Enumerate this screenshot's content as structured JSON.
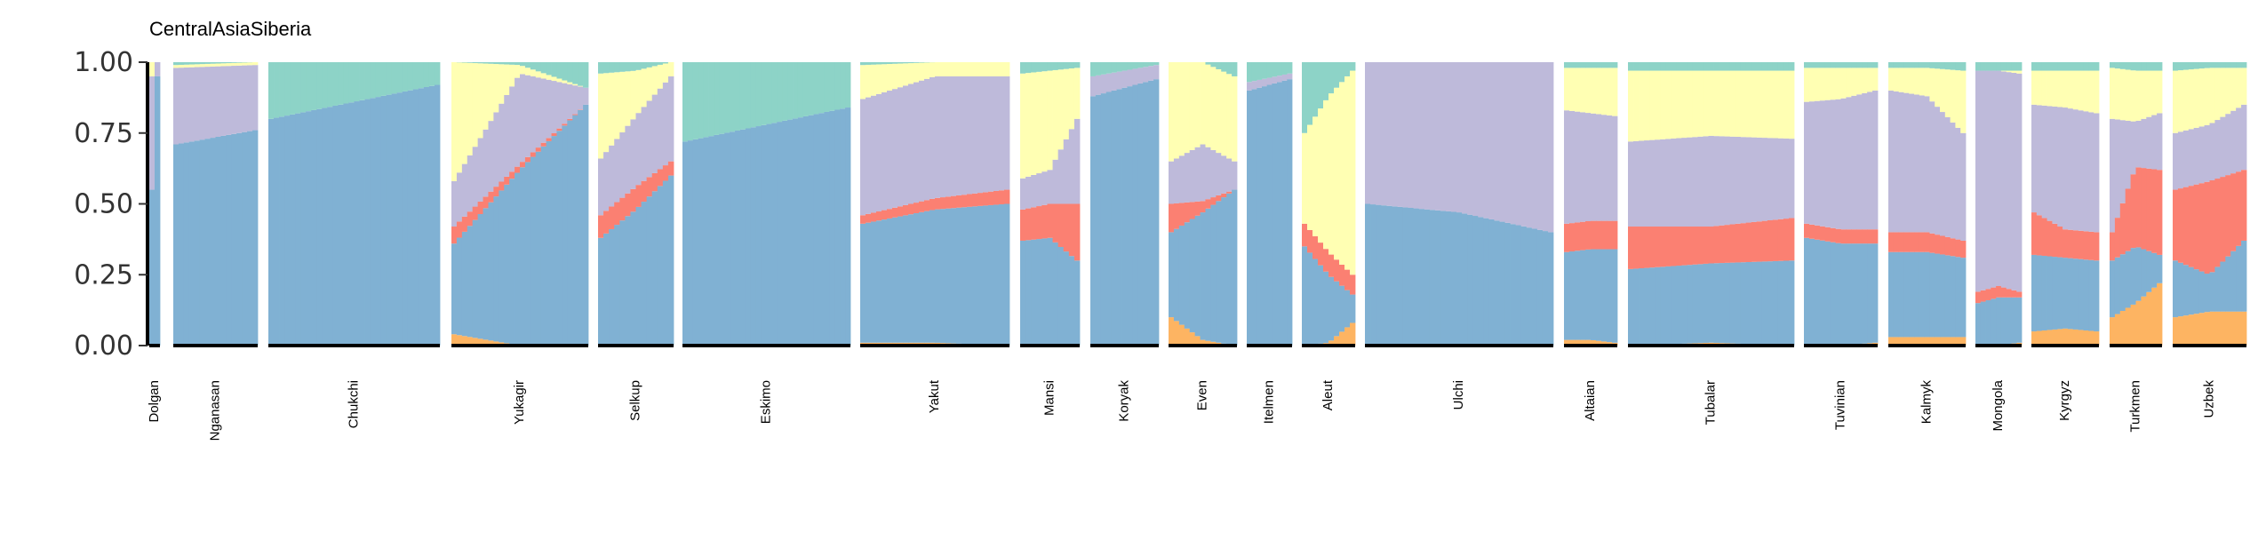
{
  "chart_data": {
    "type": "bar",
    "stacked": true,
    "title": "CentralAsiaSiberia",
    "xlabel": "",
    "ylabel": "",
    "ylim": [
      0,
      1
    ],
    "yticks": [
      "0.00",
      "0.25",
      "0.50",
      "0.75",
      "1.00"
    ],
    "grid": false,
    "legend": "none",
    "component_colors": [
      "#FDB462",
      "#80B1D3",
      "#FB8072",
      "#BEBADA",
      "#FFFFB3",
      "#8DD3C7"
    ],
    "populations": [
      {
        "name": "Dolgan",
        "components": [
          [
            0,
            0.55,
            0,
            0.4,
            0.05,
            0
          ],
          [
            0,
            0.95,
            0,
            0.05,
            0,
            0
          ]
        ]
      },
      {
        "name": "Nganasan",
        "components": [
          [
            0,
            0.71,
            0,
            0.27,
            0.01,
            0.01
          ],
          [
            0,
            0.76,
            0,
            0.23,
            0.01,
            0
          ]
        ]
      },
      {
        "name": "Chukchi",
        "components": [
          [
            0,
            0.8,
            0,
            0,
            0,
            0.2
          ],
          [
            0,
            0.92,
            0,
            0,
            0,
            0.08
          ]
        ]
      },
      {
        "name": "Yukagir",
        "components": [
          [
            0.04,
            0.32,
            0.06,
            0.16,
            0.42,
            0
          ],
          [
            0,
            0.62,
            0.02,
            0.32,
            0.03,
            0.01
          ],
          [
            0,
            0.85,
            0,
            0.06,
            0,
            0.09
          ]
        ]
      },
      {
        "name": "Selkup",
        "components": [
          [
            0,
            0.38,
            0.08,
            0.2,
            0.3,
            0.04
          ],
          [
            0,
            0.48,
            0.08,
            0.25,
            0.16,
            0.03
          ],
          [
            0,
            0.6,
            0.05,
            0.3,
            0.05,
            0
          ]
        ]
      },
      {
        "name": "Eskimo",
        "components": [
          [
            0,
            0.72,
            0,
            0,
            0,
            0.28
          ],
          [
            0,
            0.84,
            0,
            0,
            0,
            0.16
          ]
        ]
      },
      {
        "name": "Yakut",
        "components": [
          [
            0.01,
            0.42,
            0.03,
            0.41,
            0.12,
            0.01
          ],
          [
            0.01,
            0.47,
            0.04,
            0.43,
            0.05,
            0
          ],
          [
            0,
            0.5,
            0.05,
            0.4,
            0.05,
            0
          ]
        ]
      },
      {
        "name": "Mansi",
        "components": [
          [
            0,
            0.37,
            0.11,
            0.11,
            0.37,
            0.04
          ],
          [
            0,
            0.38,
            0.12,
            0.12,
            0.35,
            0.03
          ],
          [
            0,
            0.3,
            0.2,
            0.3,
            0.18,
            0.02
          ]
        ]
      },
      {
        "name": "Koryak",
        "components": [
          [
            0,
            0.88,
            0,
            0.07,
            0,
            0.05
          ],
          [
            0,
            0.94,
            0,
            0.05,
            0,
            0.01
          ]
        ]
      },
      {
        "name": "Even",
        "components": [
          [
            0.1,
            0.3,
            0.1,
            0.15,
            0.35,
            0
          ],
          [
            0.02,
            0.45,
            0.04,
            0.2,
            0.29,
            0
          ],
          [
            0,
            0.55,
            0,
            0.1,
            0.3,
            0.05
          ]
        ]
      },
      {
        "name": "Itelmen",
        "components": [
          [
            0,
            0.9,
            0,
            0.03,
            0,
            0.07
          ],
          [
            0,
            0.94,
            0,
            0.02,
            0,
            0.04
          ]
        ]
      },
      {
        "name": "Aleut",
        "components": [
          [
            0,
            0.35,
            0.08,
            0,
            0.32,
            0.25
          ],
          [
            0.01,
            0.24,
            0.08,
            0,
            0.55,
            0.12
          ],
          [
            0.08,
            0.1,
            0.07,
            0,
            0.72,
            0.03
          ]
        ]
      },
      {
        "name": "Ulchi",
        "components": [
          [
            0,
            0.5,
            0,
            0.5,
            0,
            0
          ],
          [
            0,
            0.47,
            0,
            0.53,
            0,
            0
          ],
          [
            0,
            0.4,
            0,
            0.6,
            0,
            0
          ]
        ]
      },
      {
        "name": "Altaian",
        "components": [
          [
            0.02,
            0.31,
            0.1,
            0.4,
            0.15,
            0.02
          ],
          [
            0.02,
            0.32,
            0.1,
            0.38,
            0.16,
            0.02
          ],
          [
            0.01,
            0.33,
            0.1,
            0.37,
            0.17,
            0.02
          ]
        ]
      },
      {
        "name": "Tubalar",
        "components": [
          [
            0,
            0.27,
            0.15,
            0.3,
            0.25,
            0.03
          ],
          [
            0.01,
            0.28,
            0.13,
            0.32,
            0.23,
            0.03
          ],
          [
            0,
            0.3,
            0.15,
            0.28,
            0.24,
            0.03
          ]
        ]
      },
      {
        "name": "Tuvinian",
        "components": [
          [
            0,
            0.38,
            0.05,
            0.43,
            0.12,
            0.02
          ],
          [
            0,
            0.36,
            0.05,
            0.46,
            0.11,
            0.02
          ],
          [
            0.01,
            0.35,
            0.05,
            0.49,
            0.08,
            0.02
          ]
        ]
      },
      {
        "name": "Kalmyk",
        "components": [
          [
            0.03,
            0.3,
            0.07,
            0.5,
            0.08,
            0.02
          ],
          [
            0.03,
            0.3,
            0.07,
            0.48,
            0.1,
            0.02
          ],
          [
            0.03,
            0.28,
            0.06,
            0.38,
            0.22,
            0.03
          ]
        ]
      },
      {
        "name": "Mongola",
        "components": [
          [
            0,
            0.15,
            0.04,
            0.78,
            0,
            0.03
          ],
          [
            0,
            0.17,
            0.04,
            0.76,
            0,
            0.03
          ],
          [
            0.01,
            0.16,
            0.02,
            0.77,
            0.01,
            0.03
          ]
        ]
      },
      {
        "name": "Kyrgyz",
        "components": [
          [
            0.05,
            0.27,
            0.15,
            0.38,
            0.12,
            0.03
          ],
          [
            0.06,
            0.25,
            0.1,
            0.43,
            0.13,
            0.03
          ],
          [
            0.05,
            0.25,
            0.1,
            0.42,
            0.15,
            0.03
          ]
        ]
      },
      {
        "name": "Turkmen",
        "components": [
          [
            0.1,
            0.2,
            0.1,
            0.4,
            0.18,
            0.02
          ],
          [
            0.15,
            0.2,
            0.28,
            0.16,
            0.18,
            0.03
          ],
          [
            0.22,
            0.1,
            0.3,
            0.2,
            0.15,
            0.03
          ]
        ]
      },
      {
        "name": "Uzbek",
        "components": [
          [
            0.1,
            0.2,
            0.25,
            0.2,
            0.22,
            0.03
          ],
          [
            0.12,
            0.13,
            0.33,
            0.2,
            0.2,
            0.02
          ],
          [
            0.12,
            0.25,
            0.25,
            0.23,
            0.13,
            0.02
          ]
        ]
      }
    ]
  }
}
